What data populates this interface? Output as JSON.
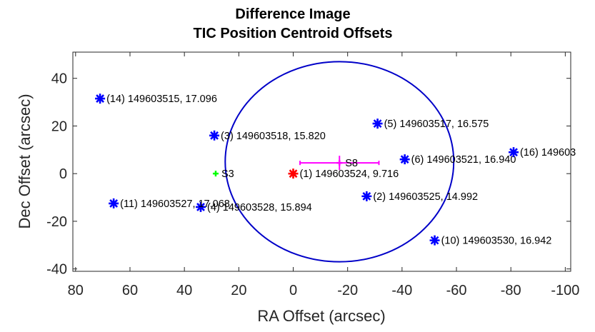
{
  "chart_data": {
    "type": "scatter",
    "title": [
      "Difference Image",
      "TIC Position Centroid Offsets"
    ],
    "xlabel": "RA Offset (arcsec)",
    "ylabel": "Dec Offset (arcsec)",
    "xlim": [
      81,
      -102
    ],
    "ylim": [
      -41,
      51
    ],
    "x_reversed": true,
    "xticks": [
      80,
      60,
      40,
      20,
      0,
      -20,
      -40,
      -60,
      -80,
      -100
    ],
    "xtick_labels": [
      "80",
      "60",
      "40",
      "20",
      "0",
      "-20",
      "-40",
      "-60",
      "-80",
      "-100"
    ],
    "yticks": [
      -40,
      -20,
      0,
      20,
      40
    ],
    "ytick_labels": [
      "-40",
      "-20",
      "0",
      "20",
      "40"
    ],
    "grid": false,
    "colors": {
      "stars": "#0000ff",
      "target": "#ff0000",
      "circle": "#0000c8",
      "centroid_s8": "#ff00ff",
      "centroid_s3": "#00ff00"
    },
    "stars": [
      {
        "x": 0,
        "y": 0,
        "label": "(1) 149603524, 9.716",
        "color": "#ff0000"
      },
      {
        "x": -27,
        "y": -9.5,
        "label": "(2) 149603525, 14.992",
        "color": "#0000ff"
      },
      {
        "x": 29,
        "y": 16,
        "label": "(3) 149603518, 15.820",
        "color": "#0000ff"
      },
      {
        "x": 34,
        "y": -14,
        "label": "(4) 149603528, 15.894",
        "color": "#0000ff"
      },
      {
        "x": -31,
        "y": 21,
        "label": "(5) 149603517, 16.575",
        "color": "#0000ff"
      },
      {
        "x": -41,
        "y": 6,
        "label": "(6) 149603521, 16.940",
        "color": "#0000ff"
      },
      {
        "x": -52,
        "y": -28,
        "label": "(10) 149603530, 16.942",
        "color": "#0000ff"
      },
      {
        "x": 66,
        "y": -12.5,
        "label": "(11) 149603527, 17.068",
        "color": "#0000ff"
      },
      {
        "x": 71,
        "y": 31.5,
        "label": "(14) 149603515, 17.096",
        "color": "#0000ff"
      },
      {
        "x": -81,
        "y": 9,
        "label": "(16) 149603",
        "color": "#0000ff"
      }
    ],
    "circle": {
      "center": [
        -17,
        5
      ],
      "radius": 42
    },
    "centroids": [
      {
        "label": "S8",
        "x": -17,
        "y": 4.5,
        "xerr": 14.5,
        "yerr": 3,
        "color": "#ff00ff"
      },
      {
        "label": "S3",
        "x": 28.5,
        "y": 0,
        "xerr": 0,
        "yerr": 0,
        "color": "#00ff00"
      }
    ]
  }
}
